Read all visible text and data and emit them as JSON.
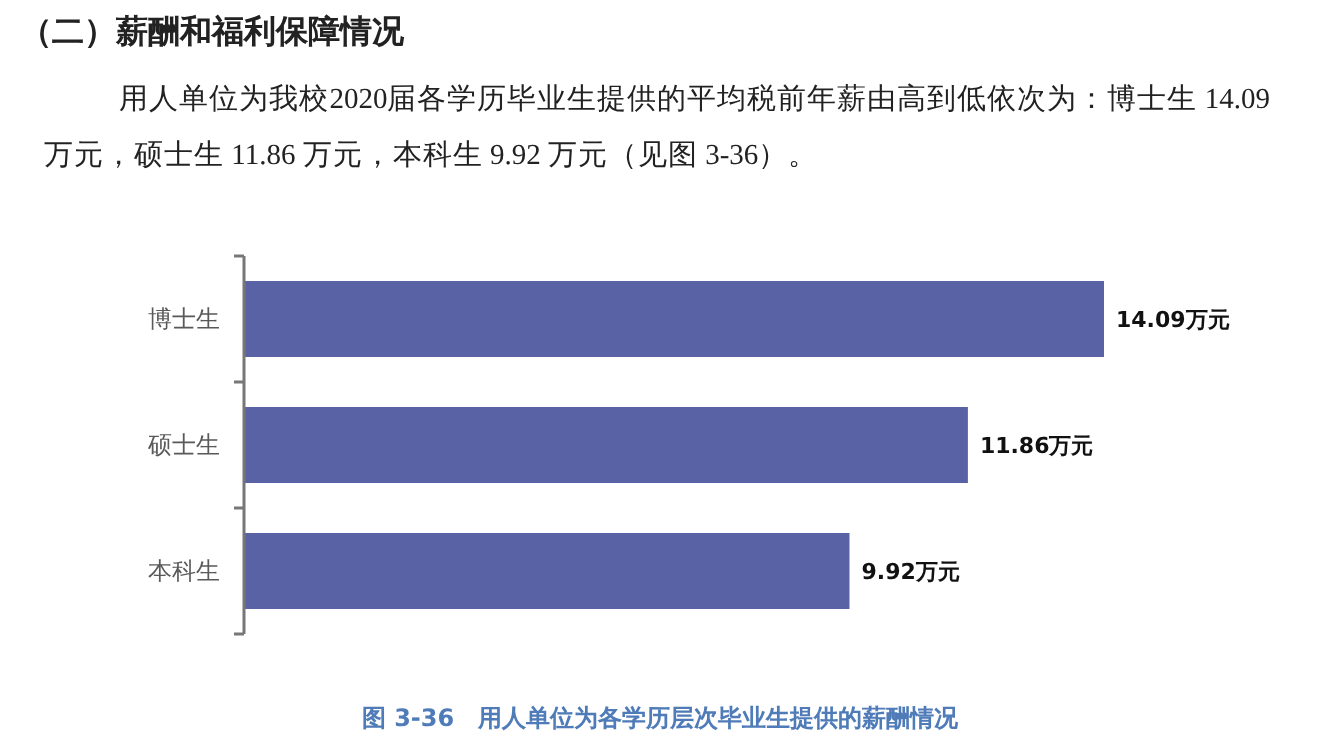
{
  "chart_data": {
    "type": "bar",
    "orientation": "horizontal",
    "title": "图 3-36　用人单位为各学历层次毕业生提供的薪酬情况",
    "subtitle": "用人单位为我校2020届各学历毕业生提供的平均税前年薪由高到低依次为：博士生 14.09 万元，硕士生 11.86 万元，本科生 9.92 万元（见图 3-36）。",
    "annotations": [
      "（二）薪酬和福利保障情况"
    ],
    "categories": [
      "博士生",
      "硕士生",
      "本科生"
    ],
    "values": [
      14.09,
      11.86,
      9.92
    ],
    "color": "#5a62a6",
    "value_labels": [
      "14.09万元",
      "11.86万元",
      "9.92万元"
    ]
  }
}
